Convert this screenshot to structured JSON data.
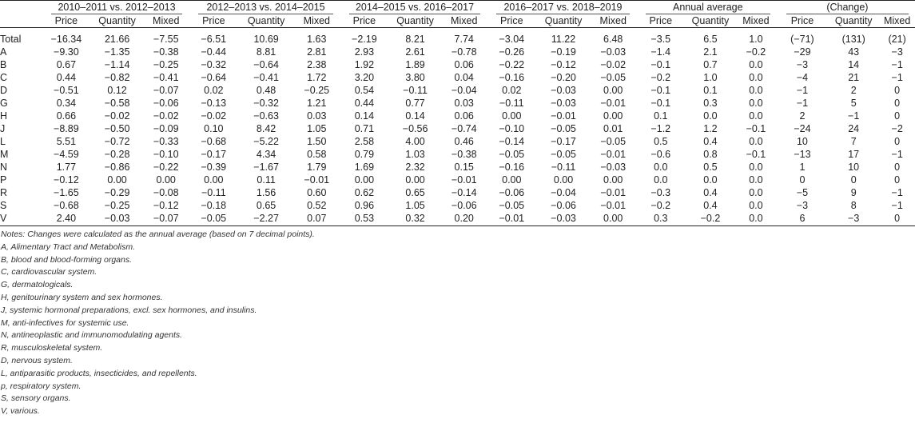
{
  "groups": [
    "2010–2011 vs. 2012–2013",
    "2012–2013 vs. 2014–2015",
    "2014–2015 vs. 2016–2017",
    "2016–2017 vs. 2018–2019",
    "Annual average",
    "(Change)"
  ],
  "subheaders": [
    "Price",
    "Quantity",
    "Mixed"
  ],
  "rows": [
    {
      "label": "Total",
      "values": [
        "−16.34",
        "21.66",
        "−7.55",
        "−6.51",
        "10.69",
        "1.63",
        "−2.19",
        "8.21",
        "7.74",
        "−3.04",
        "11.22",
        "6.48",
        "−3.5",
        "6.5",
        "1.0",
        "(−71)",
        "(131)",
        "(21)"
      ]
    },
    {
      "label": "A",
      "values": [
        "−9.30",
        "−1.35",
        "−0.38",
        "−0.44",
        "8.81",
        "2.81",
        "2.93",
        "2.61",
        "−0.78",
        "−0.26",
        "−0.19",
        "−0.03",
        "−1.4",
        "2.1",
        "−0.2",
        "−29",
        "43",
        "−3"
      ]
    },
    {
      "label": "B",
      "values": [
        "0.67",
        "−1.14",
        "−0.25",
        "−0.32",
        "−0.64",
        "2.38",
        "1.92",
        "1.89",
        "0.06",
        "−0.22",
        "−0.12",
        "−0.02",
        "−0.1",
        "0.7",
        "0.0",
        "−3",
        "14",
        "−1"
      ]
    },
    {
      "label": "C",
      "values": [
        "0.44",
        "−0.82",
        "−0.41",
        "−0.64",
        "−0.41",
        "1.72",
        "3.20",
        "3.80",
        "0.04",
        "−0.16",
        "−0.20",
        "−0.05",
        "−0.2",
        "1.0",
        "0.0",
        "−4",
        "21",
        "−1"
      ]
    },
    {
      "label": "D",
      "values": [
        "−0.51",
        "0.12",
        "−0.07",
        "0.02",
        "0.48",
        "−0.25",
        "0.54",
        "−0.11",
        "−0.04",
        "0.02",
        "−0.03",
        "0.00",
        "−0.1",
        "0.1",
        "0.0",
        "−1",
        "2",
        "0"
      ]
    },
    {
      "label": "G",
      "values": [
        "0.34",
        "−0.58",
        "−0.06",
        "−0.13",
        "−0.32",
        "1.21",
        "0.44",
        "0.77",
        "0.03",
        "−0.11",
        "−0.03",
        "−0.01",
        "−0.1",
        "0.3",
        "0.0",
        "−1",
        "5",
        "0"
      ]
    },
    {
      "label": "H",
      "values": [
        "0.66",
        "−0.02",
        "−0.02",
        "−0.02",
        "−0.63",
        "0.03",
        "0.14",
        "0.14",
        "0.06",
        "0.00",
        "−0.01",
        "0.00",
        "0.1",
        "0.0",
        "0.0",
        "2",
        "−1",
        "0"
      ]
    },
    {
      "label": "J",
      "values": [
        "−8.89",
        "−0.50",
        "−0.09",
        "0.10",
        "8.42",
        "1.05",
        "0.71",
        "−0.56",
        "−0.74",
        "−0.10",
        "−0.05",
        "0.01",
        "−1.2",
        "1.2",
        "−0.1",
        "−24",
        "24",
        "−2"
      ]
    },
    {
      "label": "L",
      "values": [
        "5.51",
        "−0.72",
        "−0.33",
        "−0.68",
        "−5.22",
        "1.50",
        "2.58",
        "4.00",
        "0.46",
        "−0.14",
        "−0.17",
        "−0.05",
        "0.5",
        "0.4",
        "0.0",
        "10",
        "7",
        "0"
      ]
    },
    {
      "label": "M",
      "values": [
        "−4.59",
        "−0.28",
        "−0.10",
        "−0.17",
        "4.34",
        "0.58",
        "0.79",
        "1.03",
        "−0.38",
        "−0.05",
        "−0.05",
        "−0.01",
        "−0.6",
        "0.8",
        "−0.1",
        "−13",
        "17",
        "−1"
      ]
    },
    {
      "label": "N",
      "values": [
        "1.77",
        "−0.86",
        "−0.22",
        "−0.39",
        "−1.67",
        "1.79",
        "1.69",
        "2.32",
        "0.15",
        "−0.16",
        "−0.11",
        "−0.03",
        "0.0",
        "0.5",
        "0.0",
        "1",
        "10",
        "0"
      ]
    },
    {
      "label": "P",
      "values": [
        "−0.12",
        "0.00",
        "0.00",
        "0.00",
        "0.11",
        "−0.01",
        "0.00",
        "0.00",
        "−0.01",
        "0.00",
        "0.00",
        "0.00",
        "0.0",
        "0.0",
        "0.0",
        "0",
        "0",
        "0"
      ]
    },
    {
      "label": "R",
      "values": [
        "−1.65",
        "−0.29",
        "−0.08",
        "−0.11",
        "1.56",
        "0.60",
        "0.62",
        "0.65",
        "−0.14",
        "−0.06",
        "−0.04",
        "−0.01",
        "−0.3",
        "0.4",
        "0.0",
        "−5",
        "9",
        "−1"
      ]
    },
    {
      "label": "S",
      "values": [
        "−0.68",
        "−0.25",
        "−0.12",
        "−0.18",
        "0.65",
        "0.52",
        "0.96",
        "1.05",
        "−0.06",
        "−0.05",
        "−0.06",
        "−0.01",
        "−0.2",
        "0.4",
        "0.0",
        "−3",
        "8",
        "−1"
      ]
    },
    {
      "label": "V",
      "values": [
        "2.40",
        "−0.03",
        "−0.07",
        "−0.05",
        "−2.27",
        "0.07",
        "0.53",
        "0.32",
        "0.20",
        "−0.01",
        "−0.03",
        "0.00",
        "0.3",
        "−0.2",
        "0.0",
        "6",
        "−3",
        "0"
      ]
    }
  ],
  "notes": [
    "Notes: Changes were calculated as the annual average (based on 7 decimal points).",
    "A, Alimentary Tract and Metabolism.",
    "B, blood and blood-forming organs.",
    "C, cardiovascular system.",
    "G, dermatologicals.",
    "H, genitourinary system and sex hormones.",
    "J, systemic hormonal preparations, excl. sex hormones, and insulins.",
    "M, anti-infectives for systemic use.",
    "N, antineoplastic and immunomodulating agents.",
    "R, musculoskeletal system.",
    "D, nervous system.",
    "L, antiparasitic products, insecticides, and repellents.",
    "p, respiratory system.",
    "S, sensory organs.",
    "V, various."
  ]
}
